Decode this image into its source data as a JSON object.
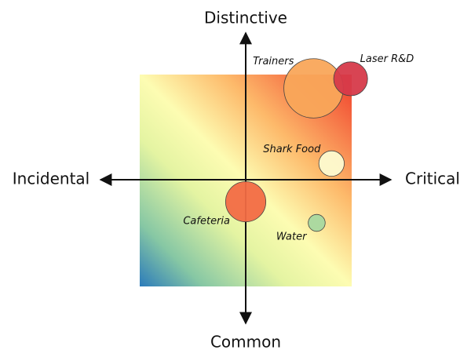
{
  "chart_data": {
    "type": "bubble",
    "x_left_label": "Incidental",
    "x_right_label": "Critical",
    "y_top_label": "Distinctive",
    "y_bottom_label": "Common",
    "xlim": [
      -1,
      1
    ],
    "ylim": [
      -1,
      1
    ],
    "points": [
      {
        "label": "Trainers",
        "x": 0.64,
        "y": 0.87,
        "size": 0.28,
        "color": "#f9a65a"
      },
      {
        "label": "Laser R&D",
        "x": 0.99,
        "y": 0.96,
        "size": 0.16,
        "color": "#d63a4a"
      },
      {
        "label": "Shark Food",
        "x": 0.81,
        "y": 0.16,
        "size": 0.12,
        "color": "#fdfbd0"
      },
      {
        "label": "Cafeteria",
        "x": 0,
        "y": -0.2,
        "size": 0.19,
        "color": "#f26b45"
      },
      {
        "label": "Water",
        "x": 0.67,
        "y": -0.4,
        "size": 0.08,
        "color": "#a8d8a0"
      }
    ]
  }
}
